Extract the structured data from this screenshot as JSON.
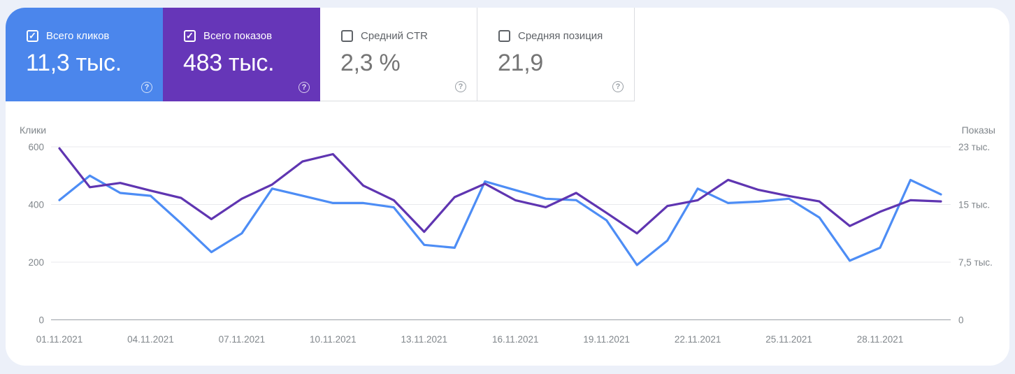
{
  "icons": {
    "check": "✓",
    "help": "?"
  },
  "colors": {
    "page_bg": "#ecf0f9",
    "panel_bg": "#ffffff",
    "clicks_card_bg": "#4b86ec",
    "impressions_card_bg": "#6636b8",
    "clicks_line": "#4d8df5",
    "impressions_line": "#5f35b1",
    "card_border": "#dadce0",
    "axis_text": "#80868b",
    "grid_line": "#e8eaed",
    "zero_line": "#9aa0a6"
  },
  "cards": [
    {
      "label": "Всего кликов",
      "value": "11,3 тыс.",
      "checked": true
    },
    {
      "label": "Всего показов",
      "value": "483 тыс.",
      "checked": true
    },
    {
      "label": "Средний CTR",
      "value": "2,3 %",
      "checked": false
    },
    {
      "label": "Средняя позиция",
      "value": "21,9",
      "checked": false
    }
  ],
  "chart_data": {
    "type": "line",
    "x": [
      "01.11.2021",
      "02.11.2021",
      "03.11.2021",
      "04.11.2021",
      "05.11.2021",
      "06.11.2021",
      "07.11.2021",
      "08.11.2021",
      "09.11.2021",
      "10.11.2021",
      "11.11.2021",
      "12.11.2021",
      "13.11.2021",
      "14.11.2021",
      "15.11.2021",
      "16.11.2021",
      "17.11.2021",
      "18.11.2021",
      "19.11.2021",
      "20.11.2021",
      "21.11.2021",
      "22.11.2021",
      "23.11.2021",
      "24.11.2021",
      "25.11.2021",
      "26.11.2021",
      "27.11.2021",
      "28.11.2021",
      "29.11.2021",
      "30.11.2021"
    ],
    "x_tick_indices": [
      0,
      3,
      6,
      9,
      12,
      15,
      18,
      21,
      24,
      27
    ],
    "series": [
      {
        "name": "Клики",
        "axis": "left",
        "color": "#4d8df5",
        "values": [
          415,
          500,
          440,
          430,
          335,
          235,
          300,
          455,
          430,
          405,
          405,
          390,
          260,
          250,
          480,
          450,
          420,
          415,
          345,
          190,
          275,
          455,
          405,
          410,
          420,
          355,
          205,
          250,
          485,
          435
        ]
      },
      {
        "name": "Показы",
        "axis": "right",
        "color": "#5f35b1",
        "values": [
          22300,
          17250,
          17800,
          16800,
          15850,
          13100,
          15750,
          17600,
          20600,
          21550,
          17450,
          15550,
          11450,
          15950,
          17700,
          15550,
          14650,
          16500,
          13900,
          11250,
          14800,
          15550,
          18200,
          16900,
          16100,
          15400,
          12200,
          14050,
          15550,
          15400
        ]
      }
    ],
    "left_axis": {
      "title": "Клики",
      "range": [
        0,
        600
      ],
      "tick_values": [
        0,
        200,
        400,
        600
      ],
      "tick_labels": [
        "0",
        "200",
        "400",
        "600"
      ]
    },
    "right_axis": {
      "title": "Показы",
      "range": [
        0,
        22500
      ],
      "tick_values": [
        0,
        7500,
        15000,
        22500
      ],
      "tick_labels": [
        "0",
        "7,5 тыс.",
        "15 тыс.",
        "23 тыс."
      ]
    },
    "grid": true,
    "legend_position": "none"
  }
}
